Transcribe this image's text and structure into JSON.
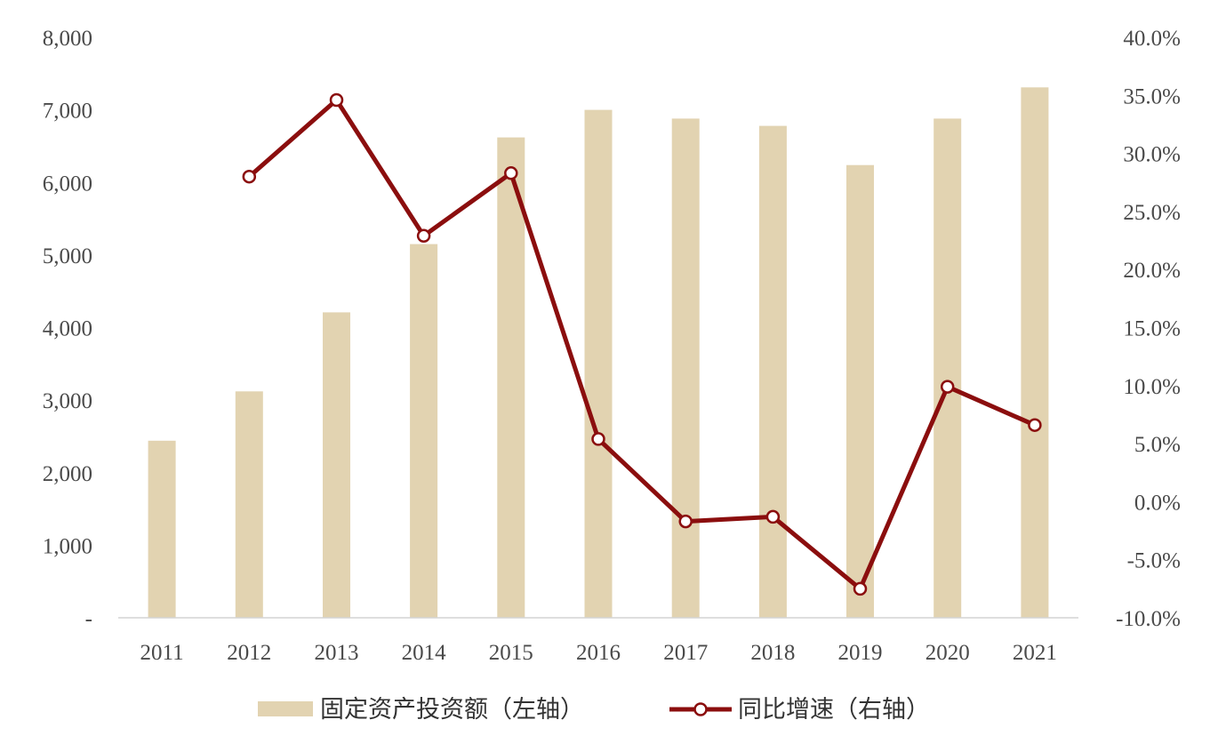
{
  "chart_data": {
    "type": "bar",
    "categories": [
      "2011",
      "2012",
      "2013",
      "2014",
      "2015",
      "2016",
      "2017",
      "2018",
      "2019",
      "2020",
      "2021"
    ],
    "series": [
      {
        "name": "固定资产投资额（左轴）",
        "type": "bar",
        "axis": "left",
        "values": [
          2440,
          3120,
          4210,
          5150,
          6620,
          7000,
          6880,
          6780,
          6240,
          6880,
          7310
        ]
      },
      {
        "name": "同比增速（右轴）",
        "type": "line",
        "axis": "right",
        "values": [
          null,
          28.0,
          34.6,
          22.9,
          28.3,
          5.4,
          -1.7,
          -1.3,
          -7.5,
          9.9,
          6.6
        ]
      }
    ],
    "left_axis": {
      "ylim": [
        0,
        8000
      ],
      "ticks": [
        0,
        1000,
        2000,
        3000,
        4000,
        5000,
        6000,
        7000,
        8000
      ],
      "tick_labels": [
        "-",
        "1,000",
        "2,000",
        "3,000",
        "4,000",
        "5,000",
        "6,000",
        "7,000",
        "8,000"
      ]
    },
    "right_axis": {
      "ylim": [
        -10,
        40
      ],
      "ticks": [
        -10,
        -5,
        0,
        5,
        10,
        15,
        20,
        25,
        30,
        35,
        40
      ],
      "tick_labels": [
        "-10.0%",
        "-5.0%",
        "0.0%",
        "5.0%",
        "10.0%",
        "15.0%",
        "20.0%",
        "25.0%",
        "30.0%",
        "35.0%",
        "40.0%"
      ]
    },
    "title": "",
    "xlabel": "",
    "ylabel": "",
    "grid": false,
    "legend_position": "bottom",
    "colors": {
      "bar": "#e2d3b1",
      "line": "#8b0e0e",
      "marker_fill": "#ffffff"
    }
  }
}
